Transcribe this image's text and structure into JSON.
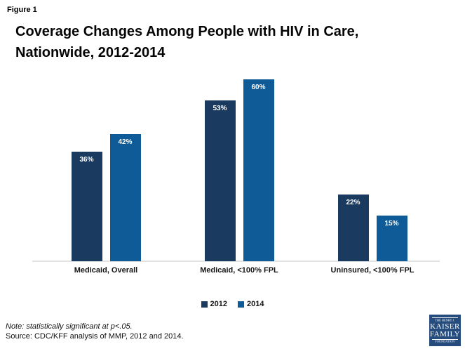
{
  "figure_label": "Figure 1",
  "title_line1": "Coverage Changes Among People with HIV in Care,",
  "title_line2": "Nationwide, 2012-2014",
  "chart_data": {
    "type": "bar",
    "title": "Coverage Changes Among People with HIV in Care, Nationwide, 2012-2014",
    "categories": [
      "Medicaid, Overall",
      "Medicaid, <100% FPL",
      "Uninsured, <100% FPL"
    ],
    "series": [
      {
        "name": "2012",
        "color": "#1A3A5F",
        "values": [
          36,
          53,
          22
        ]
      },
      {
        "name": "2014",
        "color": "#0E5B97",
        "values": [
          42,
          60,
          15
        ]
      }
    ],
    "value_suffix": "%",
    "xlabel": "",
    "ylabel": "",
    "ylim": [
      0,
      65
    ],
    "grid": false,
    "y_axis_visible": false,
    "legend_position": "bottom",
    "data_labels": "inside-top"
  },
  "note": "Note: statistically significant at p<.05.",
  "source": "Source: CDC/KFF analysis of MMP, 2012 and 2014.",
  "colors": {
    "series_2012": "#1A3A5F",
    "series_2014": "#0E5B97",
    "axis_line": "#E2E2E2",
    "logo_background": "#254C7D"
  },
  "logo": {
    "line1": "THE HENRY J.",
    "line2": "KAISER",
    "line3": "FAMILY",
    "line4": "FOUNDATION"
  }
}
